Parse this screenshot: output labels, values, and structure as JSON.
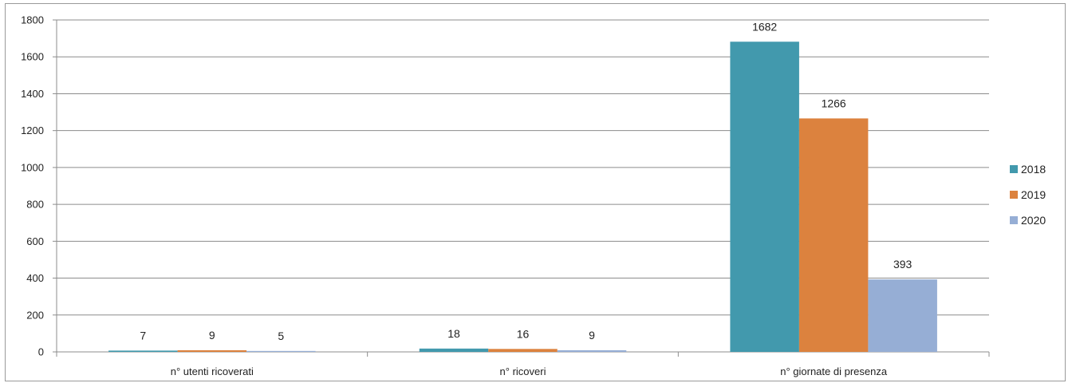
{
  "chart_data": {
    "type": "bar",
    "categories": [
      "n° utenti ricoverati",
      "n° ricoveri",
      "n° giornate di presenza"
    ],
    "series": [
      {
        "name": "2018",
        "values": [
          7,
          18,
          1682
        ],
        "color": "#4299ad"
      },
      {
        "name": "2019",
        "values": [
          9,
          16,
          1266
        ],
        "color": "#dc823e"
      },
      {
        "name": "2020",
        "values": [
          5,
          9,
          393
        ],
        "color": "#96aed5"
      }
    ],
    "ylim": [
      0,
      1800
    ],
    "yticks": [
      "0",
      "200",
      "400",
      "600",
      "800",
      "1000",
      "1200",
      "1400",
      "1600",
      "1800"
    ],
    "grid": true,
    "legend_position": "right"
  }
}
